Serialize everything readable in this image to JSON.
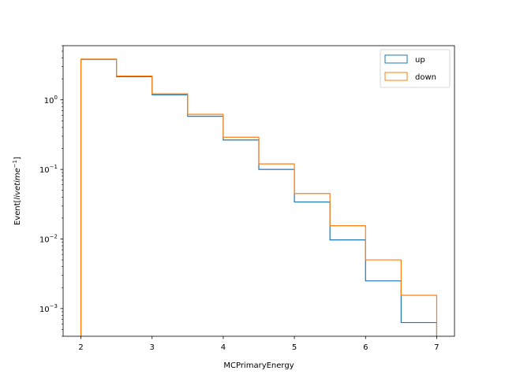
{
  "chart_data": {
    "type": "histogram-step",
    "title": "",
    "xlabel": "MCPrimaryEnergy",
    "ylabel_parts": {
      "prefix": "Event[",
      "italic": "livetime",
      "superscript": "−1",
      "suffix": "]"
    },
    "xlim": [
      1.75,
      7.25
    ],
    "ylim": [
      0.0004,
      6.0
    ],
    "yscale": "log",
    "grid": false,
    "legend_position": "top-right",
    "x_ticks": [
      2,
      3,
      4,
      5,
      6,
      7
    ],
    "x_tick_labels": [
      "2",
      "3",
      "4",
      "5",
      "6",
      "7"
    ],
    "y_ticks": [
      0.001,
      0.01,
      0.1,
      1
    ],
    "y_tick_labels": [
      {
        "base": "10",
        "exp": "−3"
      },
      {
        "base": "10",
        "exp": "−2"
      },
      {
        "base": "10",
        "exp": "−1"
      },
      {
        "base": "10",
        "exp": "0"
      }
    ],
    "bin_edges": [
      2.0,
      2.5,
      3.0,
      3.5,
      4.0,
      4.5,
      5.0,
      5.5,
      6.0,
      6.5,
      7.0
    ],
    "series": [
      {
        "name": "up",
        "color": "#1f77b4",
        "values": [
          3.8,
          2.15,
          1.18,
          0.58,
          0.265,
          0.1,
          0.034,
          0.0097,
          0.0025,
          0.00063
        ]
      },
      {
        "name": "down",
        "color": "#ff7f0e",
        "values": [
          3.85,
          2.2,
          1.22,
          0.62,
          0.29,
          0.12,
          0.045,
          0.0155,
          0.005,
          0.00155
        ]
      }
    ]
  }
}
